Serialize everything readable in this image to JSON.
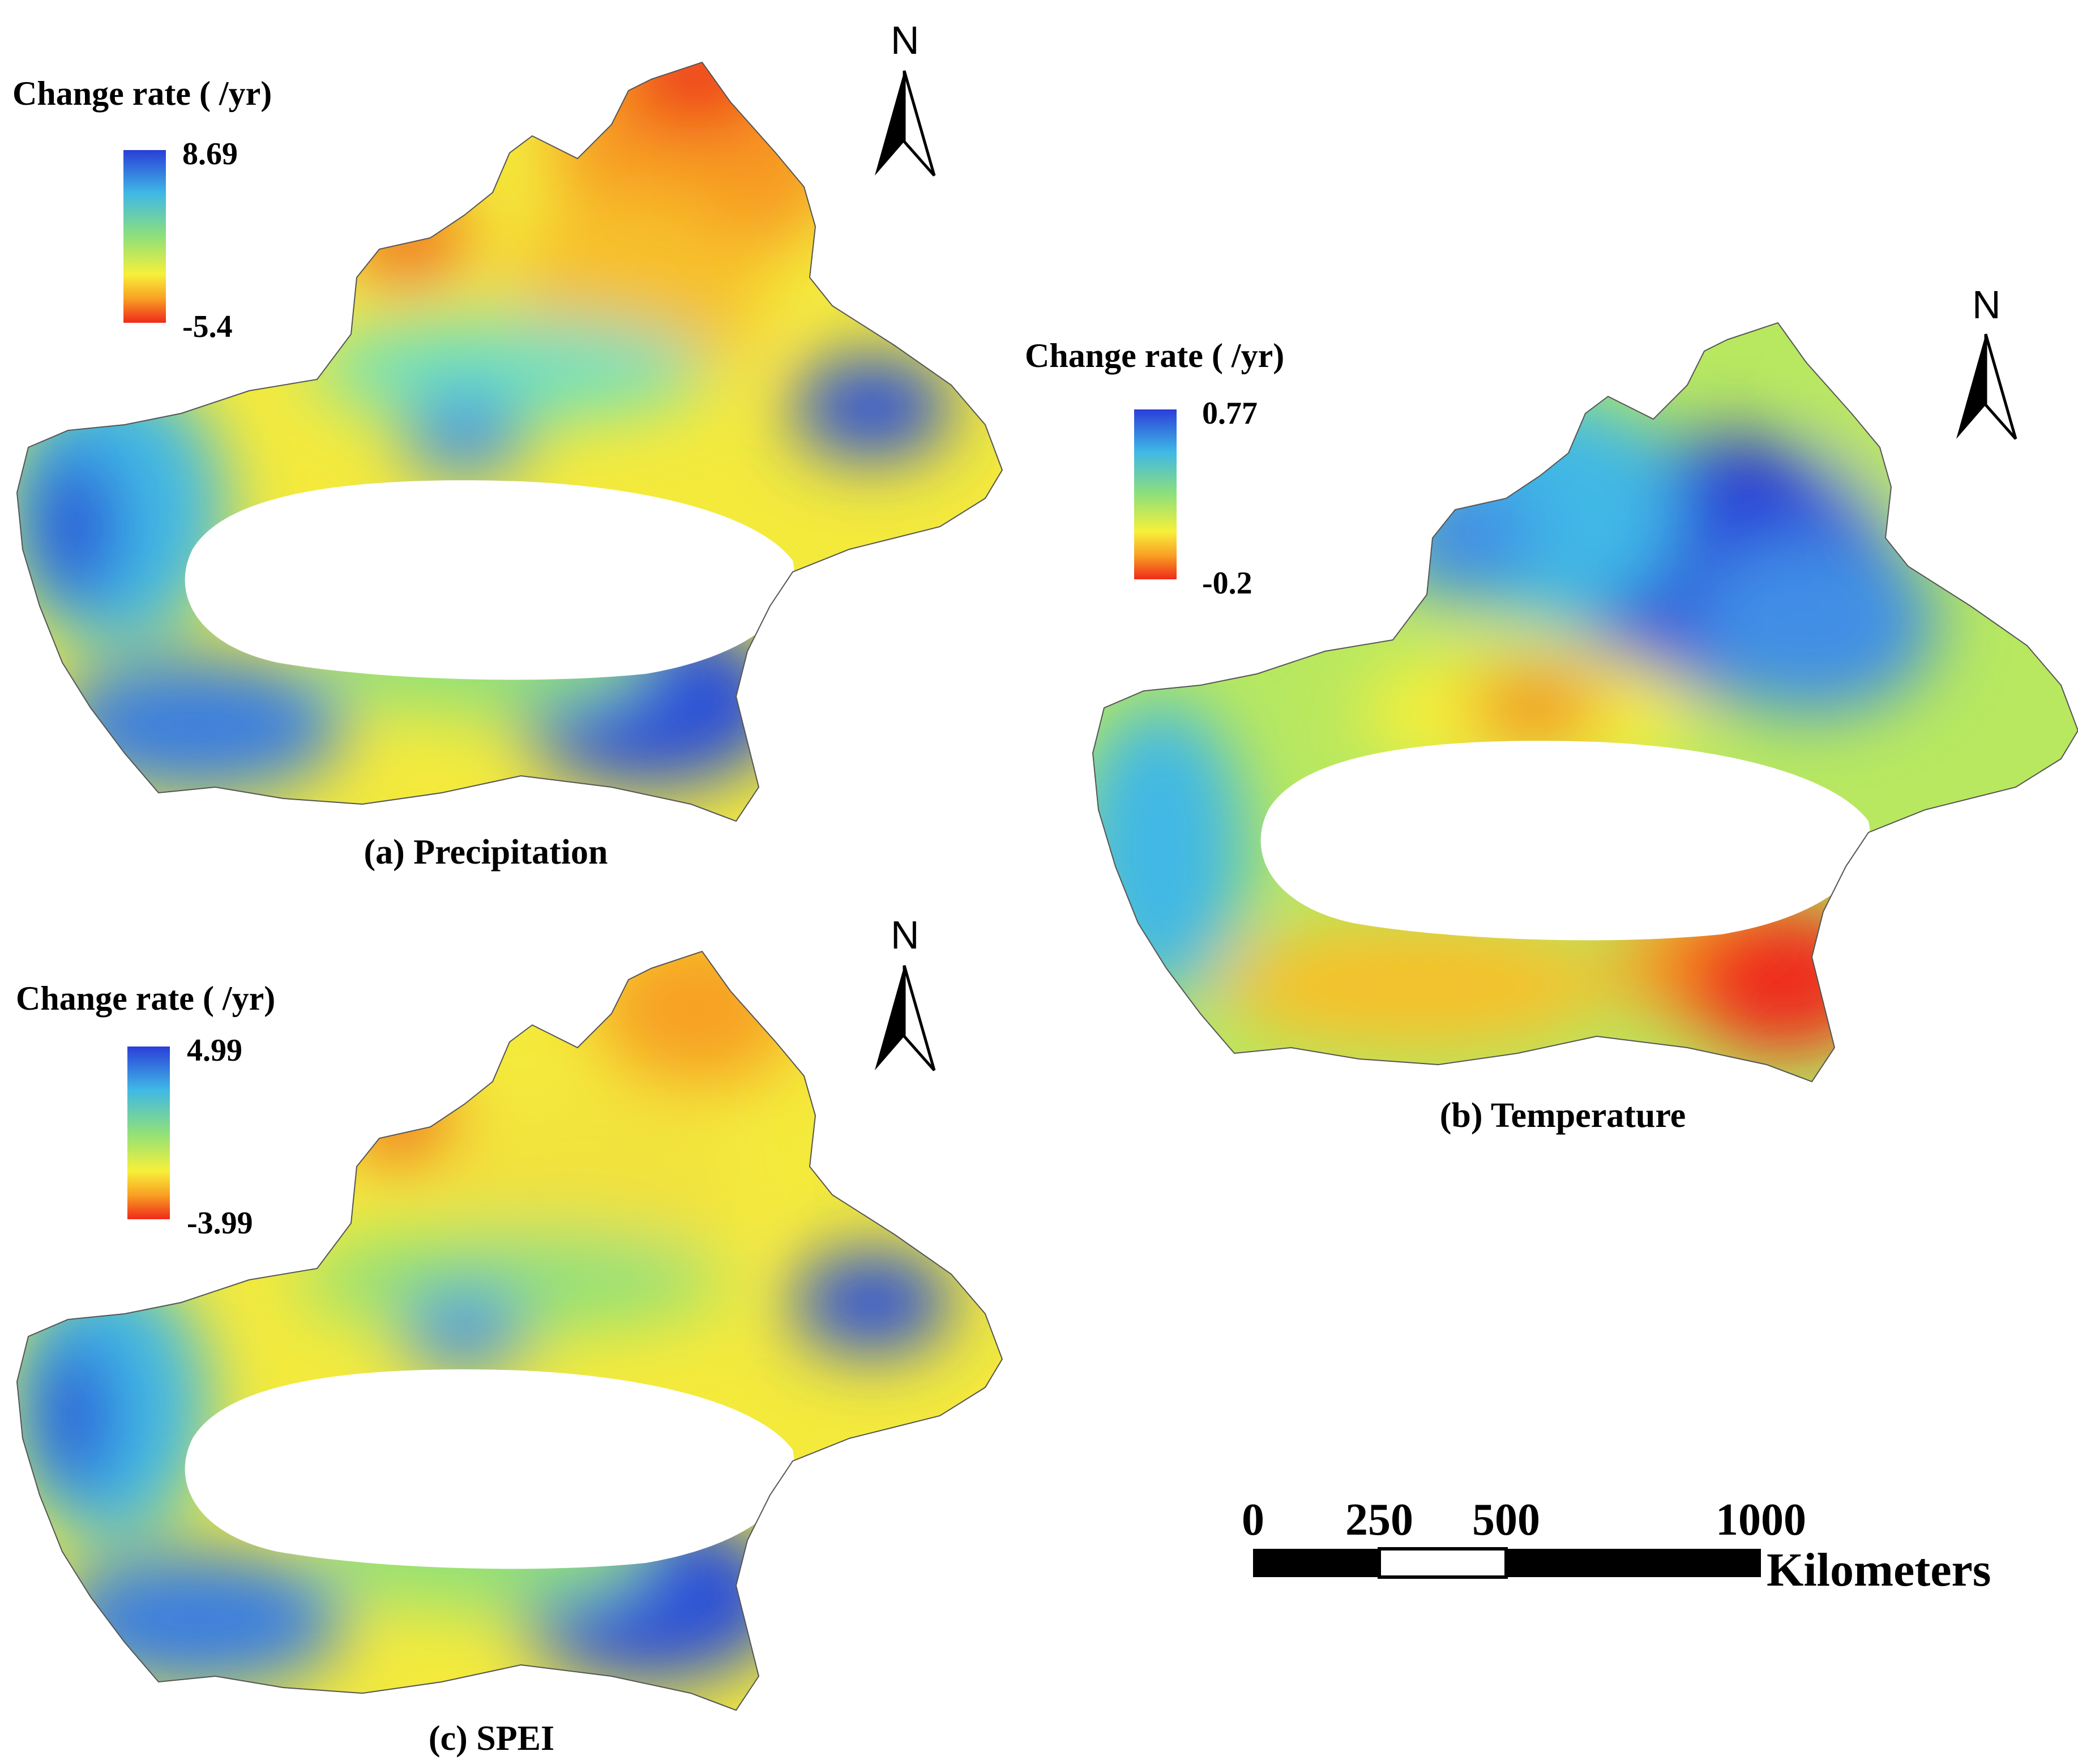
{
  "panels": [
    {
      "id": "a",
      "caption": "(a) Precipitation",
      "legend_title": "Change rate ( /yr)",
      "legend_max": "8.69",
      "legend_min": "-5.4",
      "north": "N"
    },
    {
      "id": "b",
      "caption": "(b) Temperature",
      "legend_title": "Change rate ( /yr)",
      "legend_max": "0.77",
      "legend_min": "-0.2",
      "north": "N"
    },
    {
      "id": "c",
      "caption": "(c) SPEI",
      "legend_title": "Change rate ( /yr)",
      "legend_max": "4.99",
      "legend_min": "-3.99",
      "north": "N"
    }
  ],
  "scale_bar": {
    "ticks": [
      "0",
      "250",
      "500",
      "1000"
    ],
    "unit": "Kilometers"
  },
  "colors": {
    "ramp": [
      "#2a3ed8",
      "#3fb8e6",
      "#8fe07a",
      "#f7f03a",
      "#f9a023",
      "#ef2a1a"
    ]
  }
}
